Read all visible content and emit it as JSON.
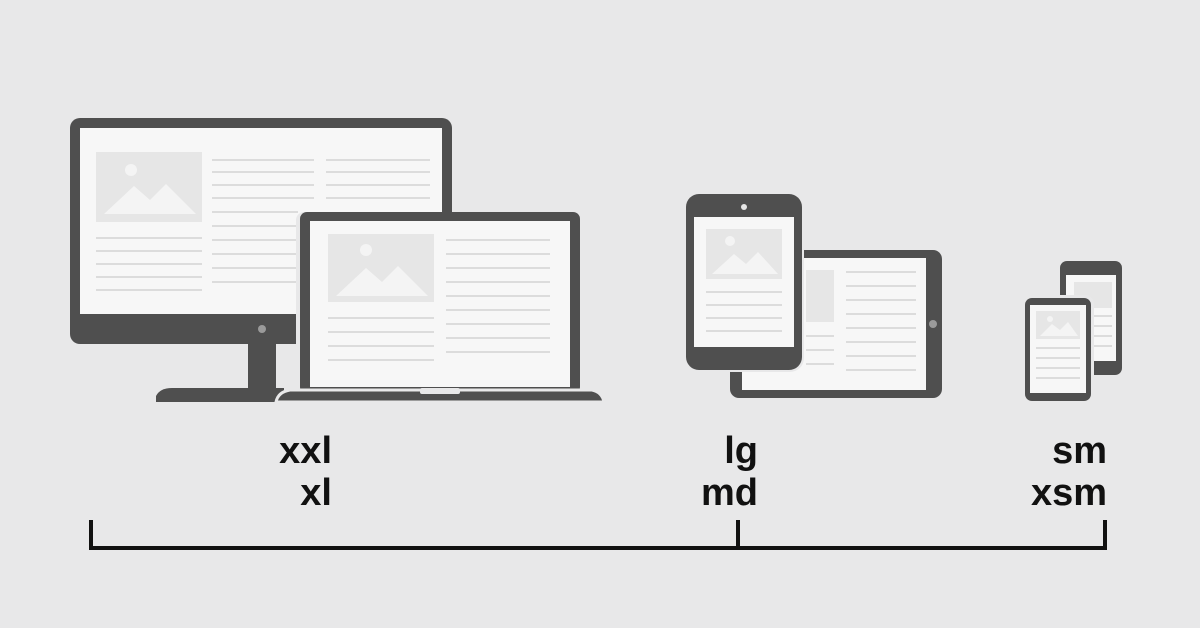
{
  "colors": {
    "background": "#e8e8e9",
    "device_frame": "#4f4f4f",
    "screen": "#f7f7f7",
    "placeholder": "#e6e6e6",
    "text_line": "#dcdcdc",
    "label": "#111111",
    "axis": "#111111"
  },
  "groups": [
    {
      "id": "large",
      "devices": [
        "desktop-monitor-icon",
        "laptop-icon"
      ],
      "labels": [
        "xxl",
        "xl"
      ]
    },
    {
      "id": "medium",
      "devices": [
        "tablet-portrait-icon",
        "tablet-landscape-icon"
      ],
      "labels": [
        "lg",
        "md"
      ]
    },
    {
      "id": "small",
      "devices": [
        "phone-front-icon",
        "phone-back-icon"
      ],
      "labels": [
        "sm",
        "xsm"
      ]
    }
  ]
}
